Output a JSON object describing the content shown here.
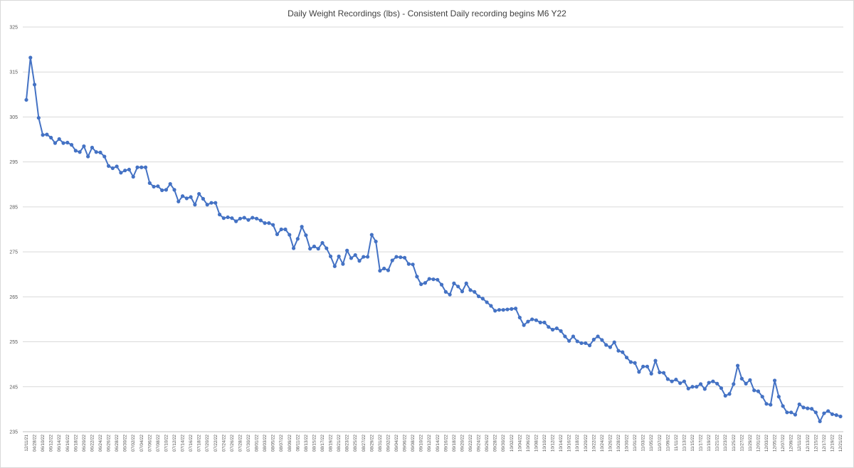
{
  "chart_data": {
    "type": "line",
    "title": "Daily Weight Recordings (lbs) - Consistent Daily recording begins M6 Y22",
    "xlabel": "",
    "ylabel": "",
    "ylim": [
      235,
      325
    ],
    "yticks": [
      235,
      245,
      255,
      265,
      275,
      285,
      295,
      305,
      315,
      325
    ],
    "grid": true,
    "legend": "none",
    "color": "#4472c4",
    "x_tick_labels": [
      "12/11/21",
      "04/28/22",
      "06/10/22",
      "06/12/22",
      "06/14/22",
      "06/16/22",
      "06/18/22",
      "06/20/22",
      "06/22/22",
      "06/24/22",
      "06/26/22",
      "06/28/22",
      "06/30/22",
      "07/02/22",
      "07/04/22",
      "07/06/22",
      "07/08/22",
      "07/10/22",
      "07/12/22",
      "07/14/22",
      "07/16/22",
      "07/18/22",
      "07/20/22",
      "07/22/22",
      "07/24/22",
      "07/26/22",
      "07/28/22",
      "07/30/22",
      "08/01/22",
      "08/03/22",
      "08/05/22",
      "08/07/22",
      "08/09/22",
      "08/11/22",
      "08/13/22",
      "08/15/22",
      "08/17/22",
      "08/19/22",
      "08/21/22",
      "08/23/22",
      "08/25/22",
      "08/27/22",
      "08/29/22",
      "08/31/22",
      "09/02/22",
      "09/04/22",
      "09/06/22",
      "09/08/22",
      "09/10/22",
      "09/12/22",
      "09/14/22",
      "09/16/22",
      "09/18/22",
      "09/20/22",
      "09/22/22",
      "09/24/22",
      "09/26/22",
      "09/28/22",
      "09/30/22",
      "10/02/22",
      "10/04/22",
      "10/06/22",
      "10/08/22",
      "10/10/22",
      "10/12/22",
      "10/14/22",
      "10/16/22",
      "10/18/22",
      "10/20/22",
      "10/22/22",
      "10/24/22",
      "10/26/22",
      "10/28/22",
      "10/30/22",
      "11/01/22",
      "11/03/22",
      "11/05/22",
      "11/07/22",
      "11/09/22",
      "11/11/22",
      "11/13/22",
      "11/15/22",
      "11/17/22",
      "11/19/22",
      "11/21/22",
      "11/23/22",
      "11/25/22",
      "11/27/22",
      "11/29/22",
      "12/01/22",
      "12/03/22",
      "12/05/22",
      "12/07/22",
      "12/09/22",
      "12/11/22",
      "12/13/22",
      "12/15/22",
      "12/17/22",
      "12/19/22",
      "12/21/22"
    ],
    "series": [
      {
        "values": [
          308.8,
          318.2,
          312.2,
          304.8,
          301.0,
          301.1,
          300.4,
          299.2,
          300.1,
          299.2,
          299.3,
          298.8,
          297.5,
          297.2,
          298.5,
          296.2,
          298.2,
          297.2,
          297.1,
          296.2,
          294.1,
          293.6,
          294.0,
          292.6,
          293.1,
          293.3,
          291.7,
          293.8,
          293.8,
          293.8,
          290.3,
          289.5,
          289.6,
          288.7,
          288.8,
          290.1,
          288.8,
          286.2,
          287.4,
          286.9,
          287.2,
          285.5,
          287.9,
          286.8,
          285.5,
          285.9,
          285.9,
          283.3,
          282.5,
          282.7,
          282.5,
          281.8,
          282.4,
          282.6,
          282.1,
          282.6,
          282.4,
          282.0,
          281.4,
          281.4,
          281.0,
          278.9,
          280.0,
          280.0,
          278.8,
          275.8,
          277.9,
          280.6,
          278.7,
          275.7,
          276.2,
          275.7,
          277.0,
          275.8,
          274.0,
          271.8,
          274.0,
          272.3,
          275.3,
          273.6,
          274.3,
          273.0,
          273.9,
          273.9,
          278.8,
          277.3,
          270.8,
          271.3,
          270.9,
          273.1,
          273.9,
          273.8,
          273.7,
          272.3,
          272.2,
          269.5,
          267.8,
          268.1,
          269.0,
          268.9,
          268.8,
          267.7,
          266.1,
          265.5,
          268.0,
          267.3,
          266.2,
          268.0,
          266.5,
          266.1,
          265.1,
          264.6,
          263.8,
          263.0,
          261.9,
          262.1,
          262.1,
          262.2,
          262.3,
          262.4,
          260.4,
          258.7,
          259.5,
          260.0,
          259.8,
          259.3,
          259.3,
          258.3,
          257.7,
          258.0,
          257.4,
          256.2,
          255.2,
          256.2,
          255.1,
          254.7,
          254.7,
          254.2,
          255.5,
          256.2,
          255.4,
          254.3,
          253.8,
          254.9,
          253.0,
          252.7,
          251.5,
          250.5,
          250.3,
          248.3,
          249.5,
          249.5,
          247.9,
          250.8,
          248.2,
          248.1,
          246.7,
          246.2,
          246.6,
          245.8,
          246.2,
          244.6,
          245.0,
          245.0,
          245.6,
          244.5,
          245.9,
          246.2,
          245.7,
          244.7,
          243.0,
          243.4,
          245.6,
          249.7,
          246.8,
          245.7,
          246.5,
          244.2,
          244.0,
          242.8,
          241.2,
          241.0,
          246.4,
          242.8,
          240.7,
          239.3,
          239.3,
          238.8,
          241.1,
          240.4,
          240.2,
          240.1,
          239.3,
          237.3,
          239.1,
          239.6,
          238.9,
          238.7,
          238.4
        ]
      }
    ]
  }
}
